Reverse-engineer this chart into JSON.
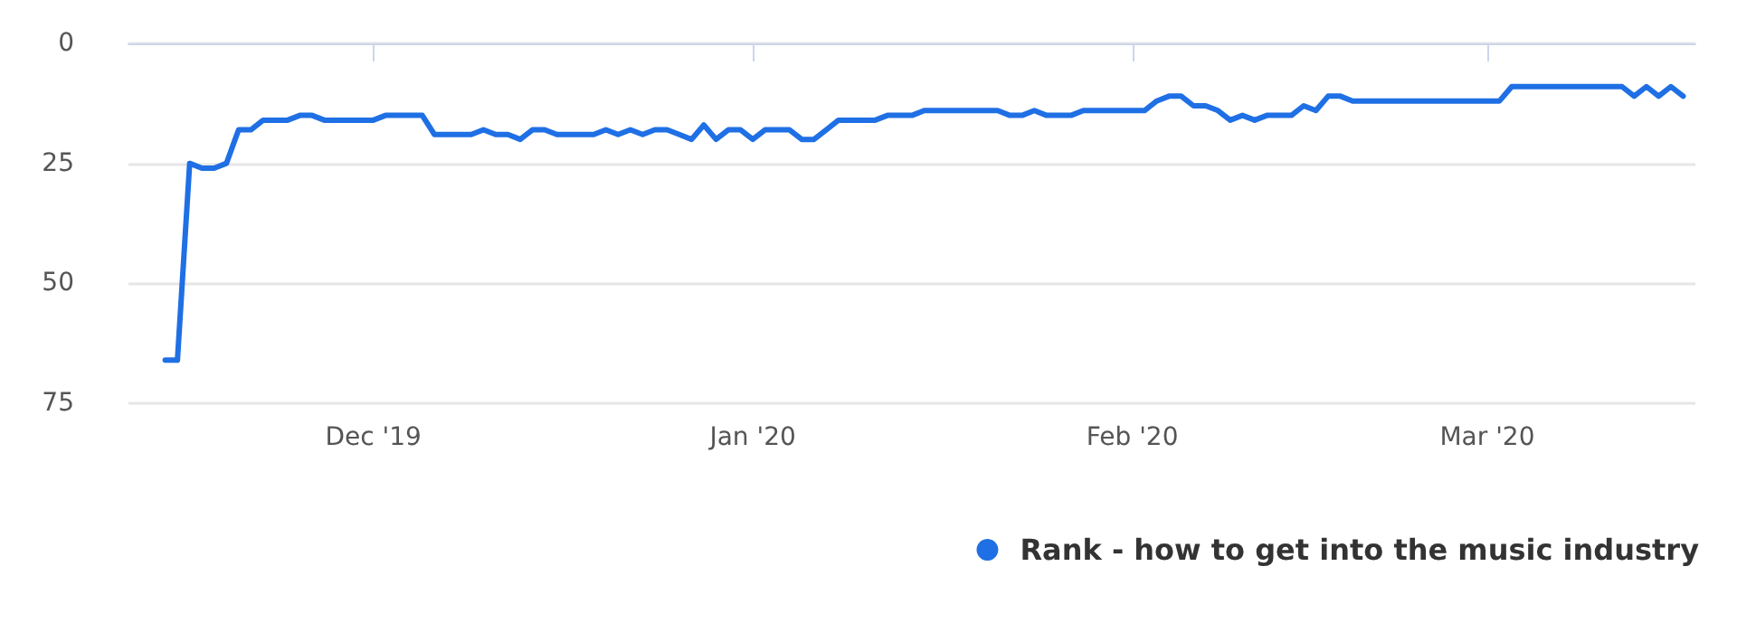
{
  "chart_data": {
    "type": "line",
    "x": [
      "2019-11-14",
      "2019-11-15",
      "2019-11-16",
      "2019-11-17",
      "2019-11-18",
      "2019-11-19",
      "2019-11-20",
      "2019-11-21",
      "2019-11-22",
      "2019-11-23",
      "2019-11-24",
      "2019-11-25",
      "2019-11-26",
      "2019-11-27",
      "2019-11-28",
      "2019-11-29",
      "2019-11-30",
      "2019-12-01",
      "2019-12-02",
      "2019-12-03",
      "2019-12-04",
      "2019-12-05",
      "2019-12-06",
      "2019-12-07",
      "2019-12-08",
      "2019-12-09",
      "2019-12-10",
      "2019-12-11",
      "2019-12-12",
      "2019-12-13",
      "2019-12-14",
      "2019-12-15",
      "2019-12-16",
      "2019-12-17",
      "2019-12-18",
      "2019-12-19",
      "2019-12-20",
      "2019-12-21",
      "2019-12-22",
      "2019-12-23",
      "2019-12-24",
      "2019-12-25",
      "2019-12-26",
      "2019-12-27",
      "2019-12-28",
      "2019-12-29",
      "2019-12-30",
      "2019-12-31",
      "2020-01-01",
      "2020-01-02",
      "2020-01-03",
      "2020-01-04",
      "2020-01-05",
      "2020-01-06",
      "2020-01-07",
      "2020-01-08",
      "2020-01-09",
      "2020-01-10",
      "2020-01-11",
      "2020-01-12",
      "2020-01-13",
      "2020-01-14",
      "2020-01-15",
      "2020-01-16",
      "2020-01-17",
      "2020-01-18",
      "2020-01-19",
      "2020-01-20",
      "2020-01-21",
      "2020-01-22",
      "2020-01-23",
      "2020-01-24",
      "2020-01-25",
      "2020-01-26",
      "2020-01-27",
      "2020-01-28",
      "2020-01-29",
      "2020-01-30",
      "2020-01-31",
      "2020-02-01",
      "2020-02-02",
      "2020-02-03",
      "2020-02-04",
      "2020-02-05",
      "2020-02-06",
      "2020-02-07",
      "2020-02-08",
      "2020-02-09",
      "2020-02-10",
      "2020-02-11",
      "2020-02-12",
      "2020-02-13",
      "2020-02-14",
      "2020-02-15",
      "2020-02-16",
      "2020-02-17",
      "2020-02-18",
      "2020-02-19",
      "2020-02-20",
      "2020-02-21",
      "2020-02-22",
      "2020-02-23",
      "2020-02-24",
      "2020-02-25",
      "2020-02-26",
      "2020-02-27",
      "2020-02-28",
      "2020-02-29",
      "2020-03-01",
      "2020-03-02",
      "2020-03-03",
      "2020-03-04",
      "2020-03-05",
      "2020-03-06",
      "2020-03-07",
      "2020-03-08",
      "2020-03-09",
      "2020-03-10",
      "2020-03-11",
      "2020-03-12",
      "2020-03-13",
      "2020-03-14",
      "2020-03-15",
      "2020-03-16",
      "2020-03-17"
    ],
    "series": [
      {
        "name": "Rank - how to get into the music industry",
        "color": "#1f6fe5",
        "values": [
          66,
          66,
          25,
          26,
          26,
          25,
          18,
          18,
          16,
          16,
          16,
          15,
          15,
          16,
          16,
          16,
          16,
          16,
          15,
          15,
          15,
          15,
          19,
          19,
          19,
          19,
          18,
          19,
          19,
          20,
          18,
          18,
          19,
          19,
          19,
          19,
          18,
          19,
          18,
          19,
          18,
          18,
          19,
          20,
          17,
          20,
          18,
          18,
          20,
          18,
          18,
          18,
          20,
          20,
          18,
          16,
          16,
          16,
          16,
          15,
          15,
          15,
          14,
          14,
          14,
          14,
          14,
          14,
          14,
          15,
          15,
          14,
          15,
          15,
          15,
          14,
          14,
          14,
          14,
          14,
          14,
          12,
          11,
          11,
          13,
          13,
          14,
          16,
          15,
          16,
          15,
          15,
          15,
          13,
          14,
          11,
          11,
          12,
          12,
          12,
          12,
          12,
          12,
          12,
          12,
          12,
          12,
          12,
          12,
          12,
          9,
          9,
          9,
          9,
          9,
          9,
          9,
          9,
          9,
          9,
          11,
          9,
          11,
          9,
          11
        ]
      }
    ],
    "xlim": [
      "2019-11-11",
      "2020-03-18"
    ],
    "xticks": [
      {
        "value": "2019-12-01",
        "label": "Dec '19"
      },
      {
        "value": "2020-01-01",
        "label": "Jan '20"
      },
      {
        "value": "2020-02-01",
        "label": "Feb '20"
      },
      {
        "value": "2020-03-01",
        "label": "Mar '20"
      }
    ],
    "ylim": [
      75,
      0
    ],
    "yticks": [
      0,
      25,
      50,
      75
    ],
    "grid": "y",
    "legend": "bottom right",
    "marker": "none",
    "line_style": "solid"
  }
}
